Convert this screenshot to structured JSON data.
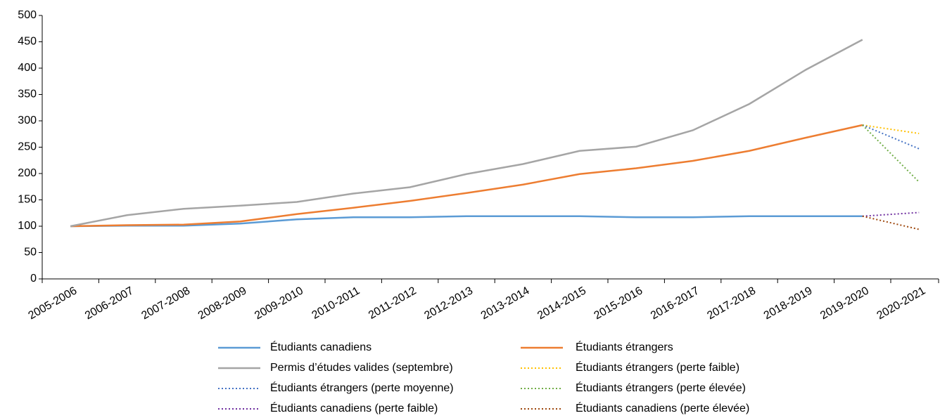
{
  "chart_data": {
    "type": "line",
    "categories": [
      "2005-2006",
      "2006-2007",
      "2007-2008",
      "2008-2009",
      "2009-2010",
      "2010-2011",
      "2011-2012",
      "2012-2013",
      "2013-2014",
      "2014-2015",
      "2015-2016",
      "2016-2017",
      "2017-2018",
      "2018-2019",
      "2019-2020",
      "2020-2021"
    ],
    "ylim": [
      0,
      500
    ],
    "yticks": [
      0,
      50,
      100,
      150,
      200,
      250,
      300,
      350,
      400,
      450,
      500
    ],
    "grid": false,
    "series": [
      {
        "name": "Étudiants canadiens",
        "color": "#5b9bd5",
        "style": "solid",
        "values": [
          100,
          101,
          101,
          105,
          113,
          117,
          117,
          119,
          119,
          119,
          117,
          117,
          119,
          119,
          119,
          null
        ]
      },
      {
        "name": "Étudiants étrangers",
        "color": "#ed7d31",
        "style": "solid",
        "values": [
          100,
          102,
          103,
          109,
          123,
          135,
          148,
          163,
          179,
          199,
          210,
          224,
          243,
          268,
          292,
          null
        ]
      },
      {
        "name": "Permis d’études valides (septembre)",
        "color": "#a5a5a5",
        "style": "solid",
        "values": [
          100,
          121,
          133,
          139,
          146,
          162,
          174,
          199,
          218,
          243,
          251,
          282,
          332,
          397,
          454,
          null
        ]
      },
      {
        "name": "Étudiants étrangers (perte faible)",
        "color": "#ffc000",
        "style": "dotted",
        "values": [
          null,
          null,
          null,
          null,
          null,
          null,
          null,
          null,
          null,
          null,
          null,
          null,
          null,
          null,
          292,
          276
        ]
      },
      {
        "name": "Étudiants étrangers (perte moyenne)",
        "color": "#4472c4",
        "style": "dotted",
        "values": [
          null,
          null,
          null,
          null,
          null,
          null,
          null,
          null,
          null,
          null,
          null,
          null,
          null,
          null,
          292,
          247
        ]
      },
      {
        "name": "Étudiants étrangers (perte élevée)",
        "color": "#70ad47",
        "style": "dotted",
        "values": [
          null,
          null,
          null,
          null,
          null,
          null,
          null,
          null,
          null,
          null,
          null,
          null,
          null,
          null,
          292,
          184
        ]
      },
      {
        "name": "Étudiants canadiens (perte faible)",
        "color": "#7030a0",
        "style": "dotted",
        "values": [
          null,
          null,
          null,
          null,
          null,
          null,
          null,
          null,
          null,
          null,
          null,
          null,
          null,
          null,
          119,
          126
        ]
      },
      {
        "name": "Étudiants canadiens (perte élevée)",
        "color": "#9e480e",
        "style": "dotted",
        "values": [
          null,
          null,
          null,
          null,
          null,
          null,
          null,
          null,
          null,
          null,
          null,
          null,
          null,
          null,
          119,
          94
        ]
      }
    ]
  }
}
